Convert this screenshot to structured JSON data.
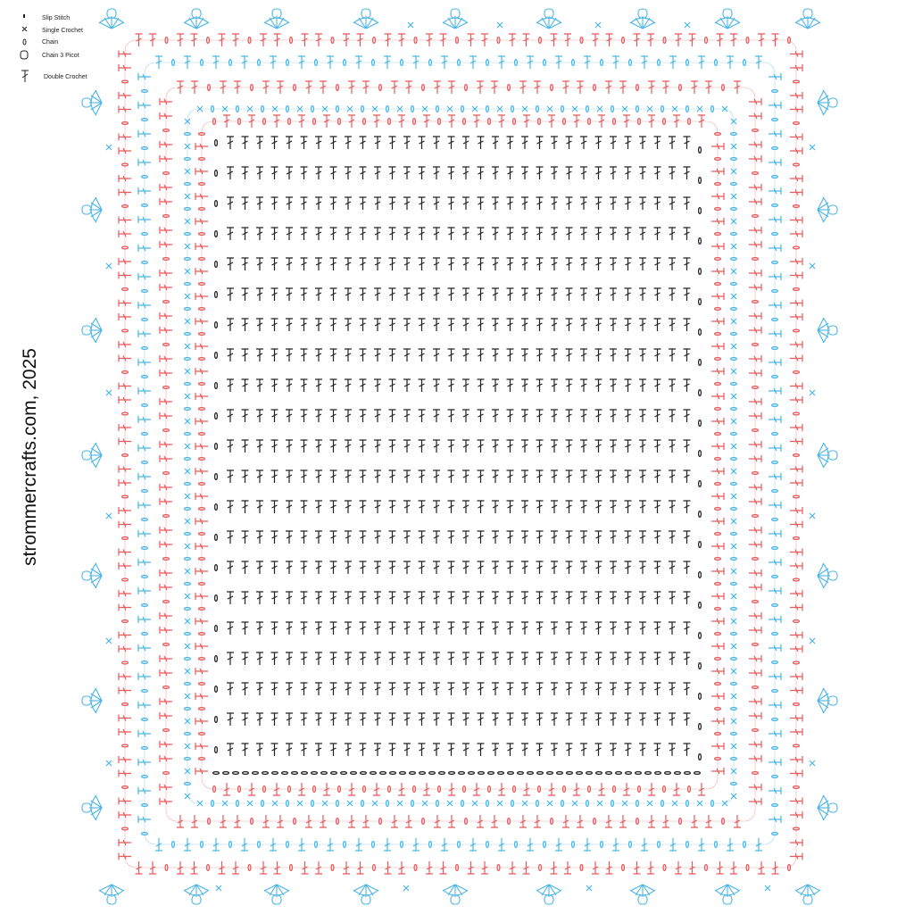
{
  "legend": {
    "items": [
      "Slip Stitch",
      "Single Crochet",
      "Chain",
      "Chain 3 Picot",
      "Double Crochet"
    ]
  },
  "watermark": "strommercrafts.com, 2025"
}
